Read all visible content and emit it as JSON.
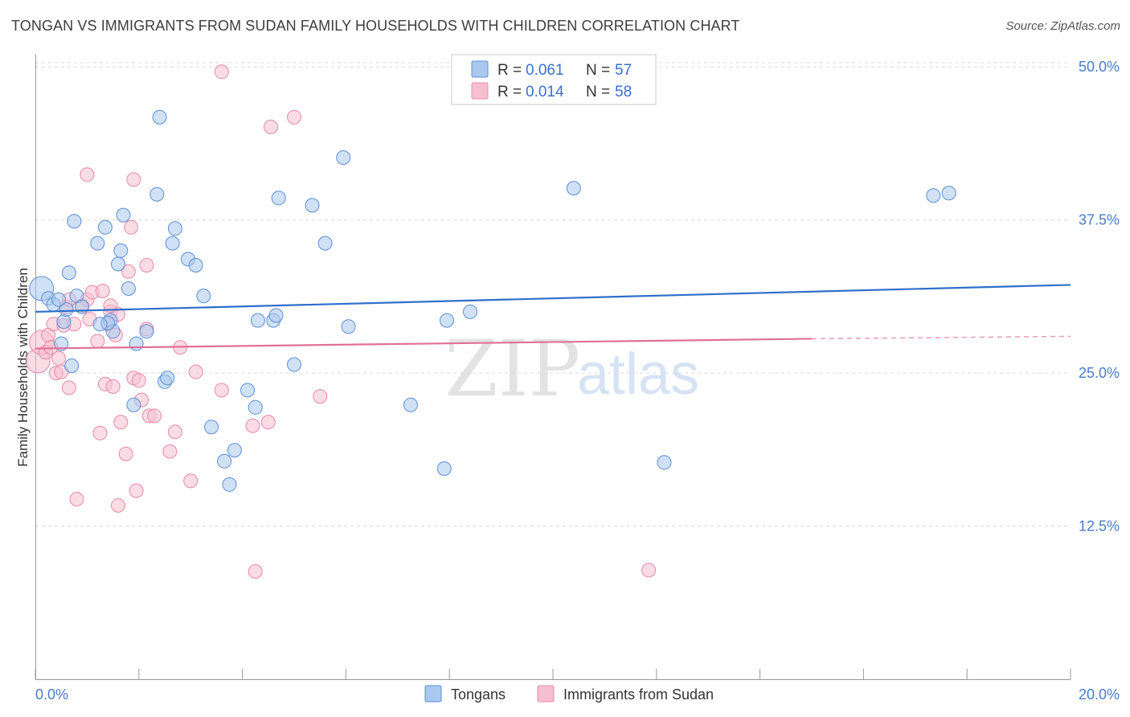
{
  "header": {
    "title": "TONGAN VS IMMIGRANTS FROM SUDAN FAMILY HOUSEHOLDS WITH CHILDREN CORRELATION CHART",
    "source": "Source: ZipAtlas.com"
  },
  "watermark": {
    "zip": "ZIP",
    "atlas": "atlas"
  },
  "colors": {
    "tongans_fill": "#a9c8ee",
    "tongans_stroke": "#5b8fd6",
    "tongans_line": "#2f6fcb",
    "sudan_fill": "#f6bfd0",
    "sudan_stroke": "#e889a8",
    "sudan_line": "#e07098",
    "axis_text": "#4a7cc7",
    "grid": "#d9d9d9"
  },
  "legend": {
    "rows": [
      {
        "r_label": "R =",
        "r_value": "0.061",
        "n_label": "N =",
        "n_value": "57"
      },
      {
        "r_label": "R =",
        "r_value": "0.014",
        "n_label": "N =",
        "n_value": "58"
      }
    ]
  },
  "chart_data": {
    "type": "scatter",
    "title": "TONGAN VS IMMIGRANTS FROM SUDAN FAMILY HOUSEHOLDS WITH CHILDREN CORRELATION CHART",
    "xlabel": "",
    "ylabel": "Family Households with Children",
    "xlim": [
      0,
      20
    ],
    "ylim": [
      0,
      51
    ],
    "y_ticks": [
      12.5,
      25.0,
      37.5,
      50.0
    ],
    "y_tick_labels": [
      "12.5%",
      "25.0%",
      "37.5%",
      "50.0%"
    ],
    "x_tick_labels": [
      "0.0%",
      "20.0%"
    ],
    "grid": "horizontal dashed",
    "legend_position": "top-center",
    "series": [
      {
        "name": "Tongans",
        "R": 0.061,
        "N": 57,
        "trend": {
          "x": [
            0,
            20
          ],
          "y": [
            30.0,
            32.2
          ]
        },
        "points": [
          [
            0.12,
            31.9,
            "l"
          ],
          [
            0.25,
            31.1
          ],
          [
            0.35,
            30.6
          ],
          [
            0.55,
            29.2
          ],
          [
            0.6,
            30.2
          ],
          [
            0.8,
            31.3
          ],
          [
            0.75,
            37.4
          ],
          [
            0.65,
            33.2
          ],
          [
            0.5,
            27.4
          ],
          [
            0.7,
            25.6
          ],
          [
            1.2,
            35.6
          ],
          [
            1.35,
            36.9
          ],
          [
            1.45,
            29.3
          ],
          [
            1.5,
            28.4
          ],
          [
            1.6,
            33.9
          ],
          [
            1.65,
            35.0
          ],
          [
            1.7,
            37.9
          ],
          [
            1.8,
            31.9
          ],
          [
            1.9,
            22.4
          ],
          [
            1.95,
            27.4
          ],
          [
            2.15,
            28.4
          ],
          [
            2.35,
            39.6
          ],
          [
            2.4,
            45.9
          ],
          [
            2.5,
            24.3
          ],
          [
            2.55,
            24.6
          ],
          [
            2.65,
            35.6
          ],
          [
            2.7,
            36.8
          ],
          [
            2.95,
            34.3
          ],
          [
            3.1,
            33.8
          ],
          [
            3.25,
            31.3
          ],
          [
            3.4,
            20.6
          ],
          [
            3.65,
            17.8
          ],
          [
            3.75,
            15.9
          ],
          [
            3.85,
            18.7
          ],
          [
            4.1,
            23.6
          ],
          [
            4.25,
            22.2
          ],
          [
            4.3,
            29.3
          ],
          [
            4.6,
            29.3
          ],
          [
            4.65,
            29.7
          ],
          [
            4.7,
            39.3
          ],
          [
            5.0,
            25.7
          ],
          [
            5.35,
            38.7
          ],
          [
            5.6,
            35.6
          ],
          [
            5.95,
            42.6
          ],
          [
            6.05,
            28.8
          ],
          [
            7.25,
            22.4
          ],
          [
            7.9,
            17.2
          ],
          [
            7.95,
            29.3
          ],
          [
            8.4,
            30.0
          ],
          [
            10.4,
            40.1
          ],
          [
            12.15,
            17.7
          ],
          [
            17.35,
            39.5
          ],
          [
            17.65,
            39.7
          ],
          [
            1.4,
            29.1
          ],
          [
            0.45,
            31.0
          ],
          [
            0.9,
            30.4
          ],
          [
            1.25,
            29.0
          ]
        ]
      },
      {
        "name": "Immigrants from Sudan",
        "R": 0.014,
        "N": 58,
        "trend": {
          "x": [
            0,
            15
          ],
          "y": [
            27.0,
            27.8
          ],
          "dashed_extension": {
            "x": [
              15,
              20
            ],
            "y": [
              27.8,
              28.0
            ]
          }
        },
        "points": [
          [
            0.05,
            26.0,
            "l"
          ],
          [
            0.12,
            27.5,
            "l"
          ],
          [
            0.2,
            26.7
          ],
          [
            0.25,
            28.1
          ],
          [
            0.3,
            27.1
          ],
          [
            0.35,
            29.0
          ],
          [
            0.4,
            25.0
          ],
          [
            0.45,
            26.2
          ],
          [
            0.5,
            25.1
          ],
          [
            0.55,
            28.9
          ],
          [
            0.6,
            30.4
          ],
          [
            0.65,
            23.8
          ],
          [
            0.75,
            29.0
          ],
          [
            0.8,
            14.7
          ],
          [
            0.9,
            30.5
          ],
          [
            1.0,
            31.0
          ],
          [
            1.05,
            29.4
          ],
          [
            1.0,
            41.2
          ],
          [
            1.1,
            31.6
          ],
          [
            1.2,
            27.6
          ],
          [
            1.25,
            20.1
          ],
          [
            1.3,
            31.7
          ],
          [
            1.35,
            24.1
          ],
          [
            1.4,
            29.0
          ],
          [
            1.45,
            30.0
          ],
          [
            1.5,
            23.9
          ],
          [
            1.55,
            28.1
          ],
          [
            1.6,
            29.8
          ],
          [
            1.6,
            14.2
          ],
          [
            1.65,
            21.0
          ],
          [
            1.75,
            18.4
          ],
          [
            1.8,
            33.3
          ],
          [
            1.85,
            36.9
          ],
          [
            1.9,
            40.8
          ],
          [
            1.9,
            24.6
          ],
          [
            1.95,
            15.4
          ],
          [
            2.0,
            24.4
          ],
          [
            2.05,
            22.8
          ],
          [
            2.15,
            33.8
          ],
          [
            2.15,
            28.6
          ],
          [
            2.2,
            21.5
          ],
          [
            2.6,
            18.6
          ],
          [
            2.7,
            20.2
          ],
          [
            2.8,
            27.1
          ],
          [
            3.0,
            16.2
          ],
          [
            3.1,
            25.1
          ],
          [
            3.6,
            23.6
          ],
          [
            4.25,
            8.8
          ],
          [
            4.2,
            20.7
          ],
          [
            4.5,
            21.0
          ],
          [
            4.55,
            45.1
          ],
          [
            5.0,
            45.9
          ],
          [
            5.5,
            23.1
          ],
          [
            3.6,
            49.6
          ],
          [
            11.85,
            8.9
          ],
          [
            2.3,
            21.5
          ],
          [
            0.65,
            31.0
          ],
          [
            1.45,
            30.5
          ]
        ]
      }
    ]
  },
  "bottom_legend": {
    "items": [
      "Tongans",
      "Immigrants from Sudan"
    ]
  }
}
